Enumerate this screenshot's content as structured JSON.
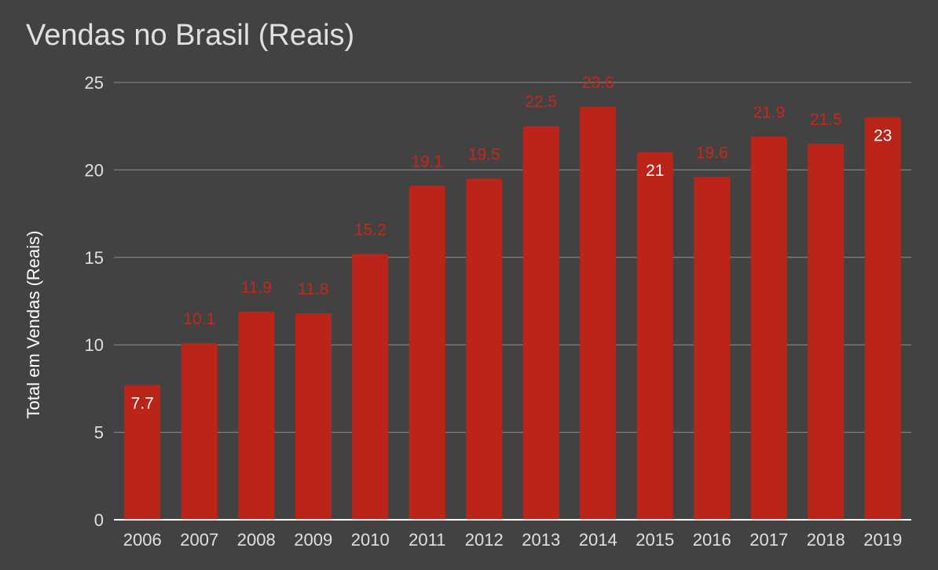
{
  "chart_data": {
    "type": "bar",
    "title": "Vendas no Brasil (Reais)",
    "xlabel": "",
    "ylabel": "Total em Vendas (Reais)",
    "categories": [
      "2006",
      "2007",
      "2008",
      "2009",
      "2010",
      "2011",
      "2012",
      "2013",
      "2014",
      "2015",
      "2016",
      "2017",
      "2018",
      "2019"
    ],
    "values": [
      7.7,
      10.1,
      11.9,
      11.8,
      15.2,
      19.1,
      19.5,
      22.5,
      23.6,
      21,
      19.6,
      21.9,
      21.5,
      23
    ],
    "data_labels": [
      "7.7",
      "10.1",
      "11.9",
      "11.8",
      "15.2",
      "19.1",
      "19.5",
      "22.5",
      "23.6",
      "21",
      "19.6",
      "21.9",
      "21.5",
      "23"
    ],
    "ylim": [
      0,
      25
    ],
    "yticks": [
      0,
      5,
      10,
      15,
      20,
      25
    ],
    "grid": true,
    "legend": "none",
    "colors": {
      "background": "#424242",
      "bar": "#bb2419",
      "grid": "#8f8f8f",
      "axis": "#ffffff",
      "tick_text": "#e0e0e0",
      "label_outside": "#c9271b",
      "label_inside": "#ffffff"
    }
  }
}
